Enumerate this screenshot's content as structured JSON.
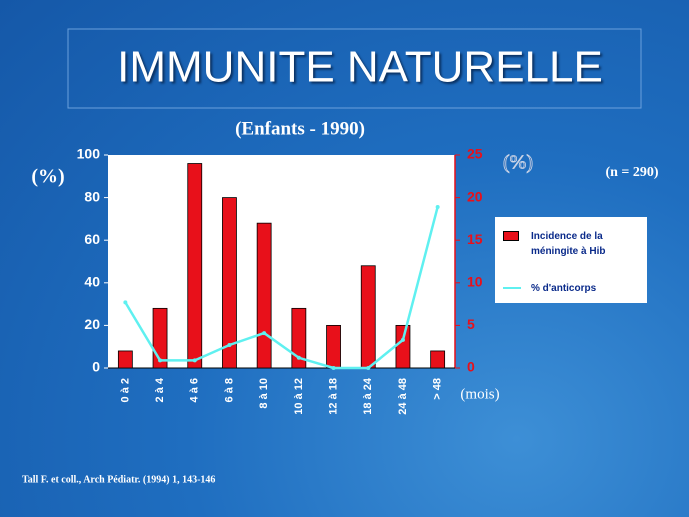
{
  "chart_data": {
    "type": "bar",
    "title": "IMMUNITE NATURELLE",
    "subtitle": "(Enfants - 1990)",
    "ylabel": "(%)",
    "y2label": "(%)",
    "xlabel": "(mois)",
    "annotation": "(n = 290)",
    "categories": [
      "0 à 2",
      "2 à 4",
      "4 à 6",
      "6 à 8",
      "8 à 10",
      "10 à 12",
      "12 à 18",
      "18 à 24",
      "24 à 48",
      "> 48"
    ],
    "series": [
      {
        "name": "Incidence de la méningite à Hib",
        "type": "bar",
        "color": "#e8101a",
        "axis": "y",
        "values": [
          8,
          28,
          96,
          80,
          68,
          28,
          20,
          48,
          20,
          8
        ]
      },
      {
        "name": "% d'anticorps",
        "type": "line",
        "color": "#5ff0f0",
        "axis": "y2",
        "values": [
          7.7,
          0.9,
          0.9,
          2.7,
          4.1,
          1.2,
          0,
          0,
          3.3,
          18.9
        ]
      }
    ],
    "ylim": [
      0,
      100
    ],
    "yticks": [
      0,
      20,
      40,
      60,
      80,
      100
    ],
    "y2lim": [
      0,
      25
    ],
    "y2ticks": [
      0,
      5,
      10,
      15,
      20,
      25
    ]
  },
  "footnote": "Tall F. et coll., Arch Pédiatr. (1994) 1, 143-146"
}
